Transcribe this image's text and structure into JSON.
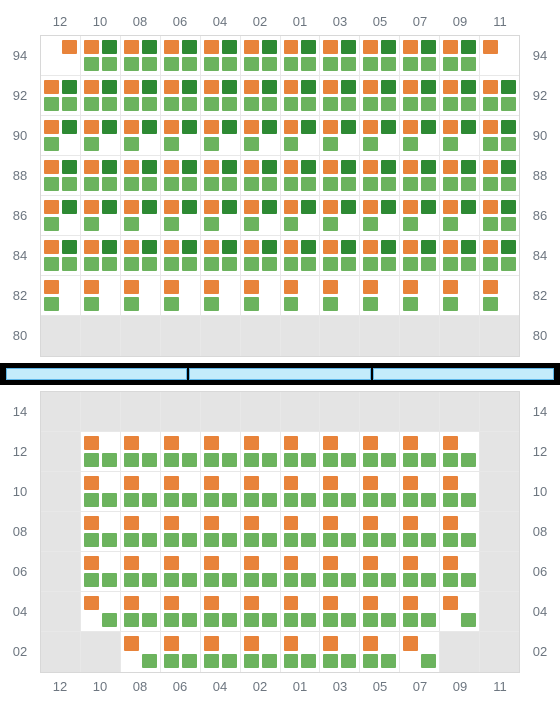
{
  "colors": {
    "orange": "#e8833a",
    "green": "#6cb35e",
    "darkgreen": "#2e8a33",
    "cellEmpty": "#e4e4e4",
    "label": "#6d7680"
  },
  "columns": [
    "12",
    "10",
    "08",
    "06",
    "04",
    "02",
    "01",
    "03",
    "05",
    "07",
    "09",
    "11"
  ],
  "topRows": [
    "94",
    "92",
    "90",
    "88",
    "86",
    "84",
    "82",
    "80"
  ],
  "bottomRows": [
    "14",
    "12",
    "10",
    "08",
    "06",
    "04",
    "02"
  ],
  "topCells": [
    [
      [
        "",
        "o",
        "",
        ""
      ],
      [
        "o",
        "d",
        "g",
        "g"
      ],
      [
        "o",
        "d",
        "g",
        "g"
      ],
      [
        "o",
        "d",
        "g",
        "g"
      ],
      [
        "o",
        "d",
        "g",
        "g"
      ],
      [
        "o",
        "d",
        "g",
        "g"
      ],
      [
        "o",
        "d",
        "g",
        "g"
      ],
      [
        "o",
        "d",
        "g",
        "g"
      ],
      [
        "o",
        "d",
        "g",
        "g"
      ],
      [
        "o",
        "d",
        "g",
        "g"
      ],
      [
        "o",
        "d",
        "g",
        "g"
      ],
      [
        "o",
        "",
        "",
        ""
      ]
    ],
    [
      [
        "o",
        "d",
        "g",
        "g"
      ],
      [
        "o",
        "d",
        "g",
        "g"
      ],
      [
        "o",
        "d",
        "g",
        "g"
      ],
      [
        "o",
        "d",
        "g",
        "g"
      ],
      [
        "o",
        "d",
        "g",
        "g"
      ],
      [
        "o",
        "d",
        "g",
        "g"
      ],
      [
        "o",
        "d",
        "g",
        "g"
      ],
      [
        "o",
        "d",
        "g",
        "g"
      ],
      [
        "o",
        "d",
        "g",
        "g"
      ],
      [
        "o",
        "d",
        "g",
        "g"
      ],
      [
        "o",
        "d",
        "g",
        "g"
      ],
      [
        "o",
        "d",
        "g",
        "g"
      ]
    ],
    [
      [
        "o",
        "d",
        "g",
        ""
      ],
      [
        "o",
        "d",
        "g",
        ""
      ],
      [
        "o",
        "d",
        "g",
        ""
      ],
      [
        "o",
        "d",
        "g",
        ""
      ],
      [
        "o",
        "d",
        "g",
        ""
      ],
      [
        "o",
        "d",
        "g",
        ""
      ],
      [
        "o",
        "d",
        "g",
        ""
      ],
      [
        "o",
        "d",
        "g",
        ""
      ],
      [
        "o",
        "d",
        "g",
        ""
      ],
      [
        "o",
        "d",
        "g",
        ""
      ],
      [
        "o",
        "d",
        "g",
        ""
      ],
      [
        "o",
        "d",
        "g",
        "g"
      ]
    ],
    [
      [
        "o",
        "d",
        "g",
        "g"
      ],
      [
        "o",
        "d",
        "g",
        "g"
      ],
      [
        "o",
        "d",
        "g",
        "g"
      ],
      [
        "o",
        "d",
        "g",
        "g"
      ],
      [
        "o",
        "d",
        "g",
        "g"
      ],
      [
        "o",
        "d",
        "g",
        "g"
      ],
      [
        "o",
        "d",
        "g",
        "g"
      ],
      [
        "o",
        "d",
        "g",
        "g"
      ],
      [
        "o",
        "d",
        "g",
        "g"
      ],
      [
        "o",
        "d",
        "g",
        "g"
      ],
      [
        "o",
        "d",
        "g",
        "g"
      ],
      [
        "o",
        "d",
        "g",
        "g"
      ]
    ],
    [
      [
        "o",
        "d",
        "g",
        ""
      ],
      [
        "o",
        "d",
        "g",
        ""
      ],
      [
        "o",
        "d",
        "g",
        ""
      ],
      [
        "o",
        "d",
        "g",
        ""
      ],
      [
        "o",
        "d",
        "g",
        ""
      ],
      [
        "o",
        "d",
        "g",
        ""
      ],
      [
        "o",
        "d",
        "g",
        ""
      ],
      [
        "o",
        "d",
        "g",
        ""
      ],
      [
        "o",
        "d",
        "g",
        ""
      ],
      [
        "o",
        "d",
        "g",
        ""
      ],
      [
        "o",
        "d",
        "g",
        ""
      ],
      [
        "o",
        "d",
        "g",
        "g"
      ]
    ],
    [
      [
        "o",
        "d",
        "g",
        "g"
      ],
      [
        "o",
        "d",
        "g",
        "g"
      ],
      [
        "o",
        "d",
        "g",
        "g"
      ],
      [
        "o",
        "d",
        "g",
        "g"
      ],
      [
        "o",
        "d",
        "g",
        "g"
      ],
      [
        "o",
        "d",
        "g",
        "g"
      ],
      [
        "o",
        "d",
        "g",
        "g"
      ],
      [
        "o",
        "d",
        "g",
        "g"
      ],
      [
        "o",
        "d",
        "g",
        "g"
      ],
      [
        "o",
        "d",
        "g",
        "g"
      ],
      [
        "o",
        "d",
        "g",
        "g"
      ],
      [
        "o",
        "d",
        "g",
        "g"
      ]
    ],
    [
      [
        "o",
        "",
        "g",
        ""
      ],
      [
        "o",
        "",
        "g",
        ""
      ],
      [
        "o",
        "",
        "g",
        ""
      ],
      [
        "o",
        "",
        "g",
        ""
      ],
      [
        "o",
        "",
        "g",
        ""
      ],
      [
        "o",
        "",
        "g",
        ""
      ],
      [
        "o",
        "",
        "g",
        ""
      ],
      [
        "o",
        "",
        "g",
        ""
      ],
      [
        "o",
        "",
        "g",
        ""
      ],
      [
        "o",
        "",
        "g",
        ""
      ],
      [
        "o",
        "",
        "g",
        ""
      ],
      [
        "o",
        "",
        "g",
        ""
      ]
    ],
    [
      "E",
      "E",
      "E",
      "E",
      "E",
      "E",
      "E",
      "E",
      "E",
      "E",
      "E",
      "E"
    ]
  ],
  "bottomCells": [
    [
      "E",
      "E",
      "E",
      "E",
      "E",
      "E",
      "E",
      "E",
      "E",
      "E",
      "E",
      "E"
    ],
    [
      "E",
      [
        "o",
        "",
        "g",
        "g"
      ],
      [
        "o",
        "",
        "g",
        "g"
      ],
      [
        "o",
        "",
        "g",
        "g"
      ],
      [
        "o",
        "",
        "g",
        "g"
      ],
      [
        "o",
        "",
        "g",
        "g"
      ],
      [
        "o",
        "",
        "g",
        "g"
      ],
      [
        "o",
        "",
        "g",
        "g"
      ],
      [
        "o",
        "",
        "g",
        "g"
      ],
      [
        "o",
        "",
        "g",
        "g"
      ],
      [
        "o",
        "",
        "g",
        "g"
      ],
      "E"
    ],
    [
      "E",
      [
        "o",
        "",
        "g",
        "g"
      ],
      [
        "o",
        "",
        "g",
        "g"
      ],
      [
        "o",
        "",
        "g",
        "g"
      ],
      [
        "o",
        "",
        "g",
        "g"
      ],
      [
        "o",
        "",
        "g",
        "g"
      ],
      [
        "o",
        "",
        "g",
        "g"
      ],
      [
        "o",
        "",
        "g",
        "g"
      ],
      [
        "o",
        "",
        "g",
        "g"
      ],
      [
        "o",
        "",
        "g",
        "g"
      ],
      [
        "o",
        "",
        "g",
        "g"
      ],
      "E"
    ],
    [
      "E",
      [
        "o",
        "",
        "g",
        "g"
      ],
      [
        "o",
        "",
        "g",
        "g"
      ],
      [
        "o",
        "",
        "g",
        "g"
      ],
      [
        "o",
        "",
        "g",
        "g"
      ],
      [
        "o",
        "",
        "g",
        "g"
      ],
      [
        "o",
        "",
        "g",
        "g"
      ],
      [
        "o",
        "",
        "g",
        "g"
      ],
      [
        "o",
        "",
        "g",
        "g"
      ],
      [
        "o",
        "",
        "g",
        "g"
      ],
      [
        "o",
        "",
        "g",
        "g"
      ],
      "E"
    ],
    [
      "E",
      [
        "o",
        "",
        "g",
        "g"
      ],
      [
        "o",
        "",
        "g",
        "g"
      ],
      [
        "o",
        "",
        "g",
        "g"
      ],
      [
        "o",
        "",
        "g",
        "g"
      ],
      [
        "o",
        "",
        "g",
        "g"
      ],
      [
        "o",
        "",
        "g",
        "g"
      ],
      [
        "o",
        "",
        "g",
        "g"
      ],
      [
        "o",
        "",
        "g",
        "g"
      ],
      [
        "o",
        "",
        "g",
        "g"
      ],
      [
        "o",
        "",
        "g",
        "g"
      ],
      "E"
    ],
    [
      "E",
      [
        "o",
        "",
        "",
        "g"
      ],
      [
        "o",
        "",
        "g",
        "g"
      ],
      [
        "o",
        "",
        "g",
        "g"
      ],
      [
        "o",
        "",
        "g",
        "g"
      ],
      [
        "o",
        "",
        "g",
        "g"
      ],
      [
        "o",
        "",
        "g",
        "g"
      ],
      [
        "o",
        "",
        "g",
        "g"
      ],
      [
        "o",
        "",
        "g",
        "g"
      ],
      [
        "o",
        "",
        "g",
        "g"
      ],
      [
        "o",
        "",
        "",
        "g"
      ],
      "E"
    ],
    [
      "E",
      "E",
      [
        "o",
        "",
        "",
        "g"
      ],
      [
        "o",
        "",
        "g",
        "g"
      ],
      [
        "o",
        "",
        "g",
        "g"
      ],
      [
        "o",
        "",
        "g",
        "g"
      ],
      [
        "o",
        "",
        "g",
        "g"
      ],
      [
        "o",
        "",
        "g",
        "g"
      ],
      [
        "o",
        "",
        "g",
        "g"
      ],
      [
        "o",
        "",
        "",
        "g"
      ],
      "E",
      "E"
    ]
  ],
  "dividerSegments": 3
}
